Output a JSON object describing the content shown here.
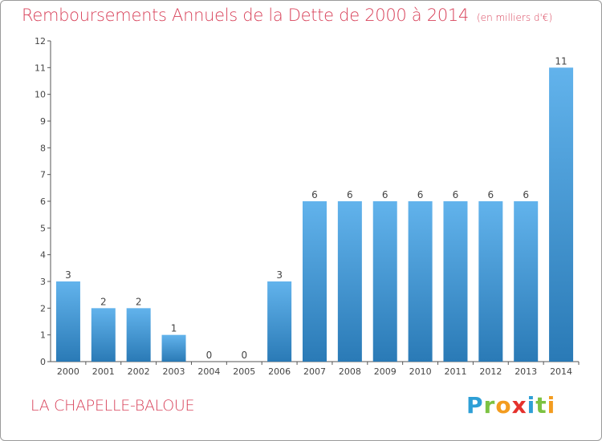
{
  "header": {
    "title": "Remboursements Annuels de la Dette de 2000 à 2014",
    "subtitle": "(en milliers d'€)"
  },
  "footer": {
    "commune": "LA CHAPELLE-BALOUE",
    "logo_letters": [
      "P",
      "r",
      "o",
      "x",
      "i",
      "t",
      "i"
    ],
    "logo_colors": [
      "#2e9fd6",
      "#7cc242",
      "#f39c1f",
      "#e5322d",
      "#2e9fd6",
      "#7cc242",
      "#f39c1f"
    ]
  },
  "colors": {
    "title": "#d8425a",
    "bar_light": "#62b3ec",
    "bar_dark": "#2a7ab6",
    "axis": "#555555",
    "text": "#444444"
  },
  "chart_data": {
    "type": "bar",
    "title": "Remboursements Annuels de la Dette de 2000 à 2014",
    "subtitle": "(en milliers d'€)",
    "categories": [
      "2000",
      "2001",
      "2002",
      "2003",
      "2004",
      "2005",
      "2006",
      "2007",
      "2008",
      "2009",
      "2010",
      "2011",
      "2012",
      "2013",
      "2014"
    ],
    "values": [
      3,
      2,
      2,
      1,
      0,
      0,
      3,
      6,
      6,
      6,
      6,
      6,
      6,
      6,
      11
    ],
    "data_labels": [
      "3",
      "2",
      "2",
      "1",
      "0",
      "0",
      "3",
      "6",
      "6",
      "6",
      "6",
      "6",
      "6",
      "6",
      "11"
    ],
    "ylim": [
      0,
      12
    ],
    "yticks": [
      0,
      1,
      2,
      3,
      4,
      5,
      6,
      7,
      8,
      9,
      10,
      11,
      12
    ],
    "grid": false,
    "legend": "none"
  }
}
